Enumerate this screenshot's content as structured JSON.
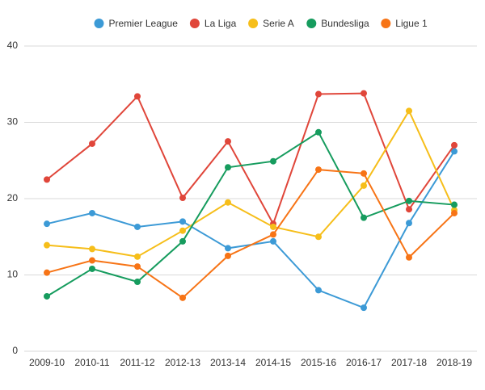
{
  "chart_data": {
    "type": "line",
    "categories": [
      "2009-10",
      "2010-11",
      "2011-12",
      "2012-13",
      "2013-14",
      "2014-15",
      "2015-16",
      "2016-17",
      "2017-18",
      "2018-19"
    ],
    "series": [
      {
        "name": "Premier League",
        "color": "#3c9ad6",
        "values": [
          16.7,
          18.1,
          16.3,
          17.0,
          13.5,
          14.4,
          8.0,
          5.7,
          16.8,
          26.2
        ]
      },
      {
        "name": "La Liga",
        "color": "#e0463a",
        "values": [
          22.5,
          27.2,
          33.4,
          20.1,
          27.5,
          16.7,
          33.7,
          33.8,
          18.6,
          27.0
        ]
      },
      {
        "name": "Serie A",
        "color": "#f6be1a",
        "values": [
          13.9,
          13.4,
          12.4,
          15.8,
          19.5,
          16.3,
          15.0,
          21.7,
          31.5,
          18.5
        ]
      },
      {
        "name": "Bundesliga",
        "color": "#169c5e",
        "values": [
          7.2,
          10.8,
          9.1,
          14.4,
          24.1,
          24.9,
          28.7,
          17.5,
          19.7,
          19.2
        ]
      },
      {
        "name": "Ligue 1",
        "color": "#f77416",
        "values": [
          10.3,
          11.9,
          11.1,
          7.0,
          12.5,
          15.3,
          23.8,
          23.3,
          12.3,
          18.1
        ]
      }
    ],
    "ylim": [
      0,
      40
    ],
    "yticks": [
      0,
      10,
      20,
      30,
      40
    ],
    "grid": true,
    "legend": "top"
  }
}
